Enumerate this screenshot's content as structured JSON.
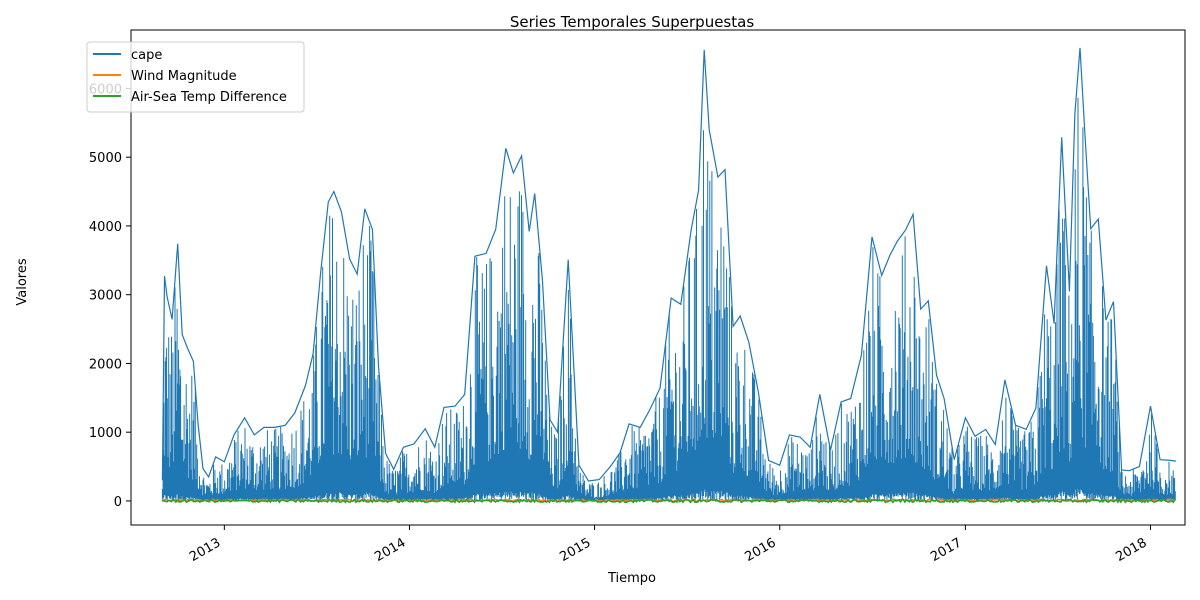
{
  "chart_data": {
    "type": "line",
    "title": "Series Temporales Superpuestas",
    "xlabel": "Tiempo",
    "ylabel": "Valores",
    "xlim": [
      "2012-07-01",
      "2018-03-10"
    ],
    "ylim": [
      -350,
      6850
    ],
    "yticks": [
      0,
      1000,
      2000,
      3000,
      4000,
      5000,
      6000
    ],
    "xticks": [
      {
        "date": "2013-01-01",
        "label": "2013"
      },
      {
        "date": "2014-01-01",
        "label": "2014"
      },
      {
        "date": "2015-01-01",
        "label": "2015"
      },
      {
        "date": "2016-01-01",
        "label": "2016"
      },
      {
        "date": "2017-01-01",
        "label": "2017"
      },
      {
        "date": "2018-01-01",
        "label": "2018"
      }
    ],
    "legend": "upper-left",
    "series": [
      {
        "name": "cape",
        "color": "#1f77b4",
        "x": [
          "2012-09-01",
          "2012-09-05",
          "2012-09-10",
          "2012-09-20",
          "2012-10-01",
          "2012-10-10",
          "2012-10-20",
          "2012-11-01",
          "2012-11-10",
          "2012-11-20",
          "2012-12-01",
          "2012-12-15",
          "2013-01-01",
          "2013-01-20",
          "2013-02-10",
          "2013-03-01",
          "2013-03-20",
          "2013-04-10",
          "2013-05-01",
          "2013-05-20",
          "2013-06-10",
          "2013-06-25",
          "2013-07-10",
          "2013-07-25",
          "2013-08-05",
          "2013-08-20",
          "2013-09-05",
          "2013-09-20",
          "2013-10-05",
          "2013-10-20",
          "2013-11-01",
          "2013-11-15",
          "2013-12-01",
          "2013-12-20",
          "2014-01-10",
          "2014-02-01",
          "2014-02-20",
          "2014-03-10",
          "2014-04-01",
          "2014-04-20",
          "2014-05-10",
          "2014-06-01",
          "2014-06-20",
          "2014-07-10",
          "2014-07-25",
          "2014-08-10",
          "2014-08-25",
          "2014-09-05",
          "2014-09-20",
          "2014-10-05",
          "2014-10-20",
          "2014-11-10",
          "2014-12-01",
          "2014-12-20",
          "2015-01-10",
          "2015-02-01",
          "2015-02-20",
          "2015-03-10",
          "2015-04-01",
          "2015-04-20",
          "2015-05-10",
          "2015-06-01",
          "2015-06-20",
          "2015-07-10",
          "2015-07-25",
          "2015-08-05",
          "2015-08-15",
          "2015-09-01",
          "2015-09-15",
          "2015-10-01",
          "2015-10-15",
          "2015-11-01",
          "2015-11-20",
          "2015-12-10",
          "2016-01-01",
          "2016-01-20",
          "2016-02-10",
          "2016-03-01",
          "2016-03-20",
          "2016-04-10",
          "2016-05-01",
          "2016-05-20",
          "2016-06-10",
          "2016-07-01",
          "2016-07-20",
          "2016-08-05",
          "2016-08-20",
          "2016-09-05",
          "2016-09-20",
          "2016-10-05",
          "2016-10-20",
          "2016-11-05",
          "2016-11-20",
          "2016-12-10",
          "2017-01-01",
          "2017-01-20",
          "2017-02-10",
          "2017-03-01",
          "2017-03-20",
          "2017-04-10",
          "2017-05-01",
          "2017-05-20",
          "2017-06-10",
          "2017-06-25",
          "2017-07-10",
          "2017-07-25",
          "2017-08-05",
          "2017-08-15",
          "2017-08-25",
          "2017-09-05",
          "2017-09-20",
          "2017-10-05",
          "2017-10-20",
          "2017-11-05",
          "2017-11-20",
          "2017-12-10",
          "2018-01-01",
          "2018-01-20",
          "2018-02-10",
          "2018-02-20"
        ],
        "y": [
          300,
          3270,
          2980,
          2640,
          3740,
          2420,
          2230,
          2030,
          1130,
          470,
          350,
          640,
          570,
          960,
          1210,
          960,
          1070,
          1070,
          1100,
          1280,
          1680,
          2140,
          3330,
          4350,
          4500,
          4200,
          3520,
          3300,
          4250,
          3950,
          1960,
          690,
          460,
          780,
          830,
          1050,
          780,
          1360,
          1380,
          1550,
          3560,
          3600,
          3950,
          5130,
          4770,
          5020,
          3920,
          4470,
          3220,
          1180,
          1000,
          3510,
          520,
          290,
          310,
          500,
          700,
          1120,
          1070,
          1330,
          1640,
          2950,
          2860,
          3930,
          4520,
          6560,
          5400,
          4710,
          4820,
          2540,
          2690,
          2310,
          1580,
          590,
          520,
          960,
          930,
          780,
          1550,
          740,
          1440,
          1490,
          2120,
          3840,
          3280,
          3570,
          3780,
          3940,
          4170,
          2790,
          2910,
          1830,
          1490,
          600,
          1210,
          940,
          1040,
          820,
          1760,
          1100,
          1040,
          1350,
          3420,
          2580,
          5290,
          3050,
          5640,
          6590,
          5290,
          3960,
          4100,
          2630,
          2900,
          450,
          440,
          500,
          1380,
          600,
          590,
          580
        ]
      },
      {
        "name": "Wind Magnitude",
        "color": "#ff7f0e",
        "x": [
          "2012-09-01",
          "2018-02-20"
        ],
        "y": [
          10,
          10
        ]
      },
      {
        "name": "Air-Sea Temp Difference",
        "color": "#2ca02c",
        "x": [
          "2012-09-01",
          "2018-02-20"
        ],
        "y": [
          0,
          0
        ]
      }
    ]
  }
}
